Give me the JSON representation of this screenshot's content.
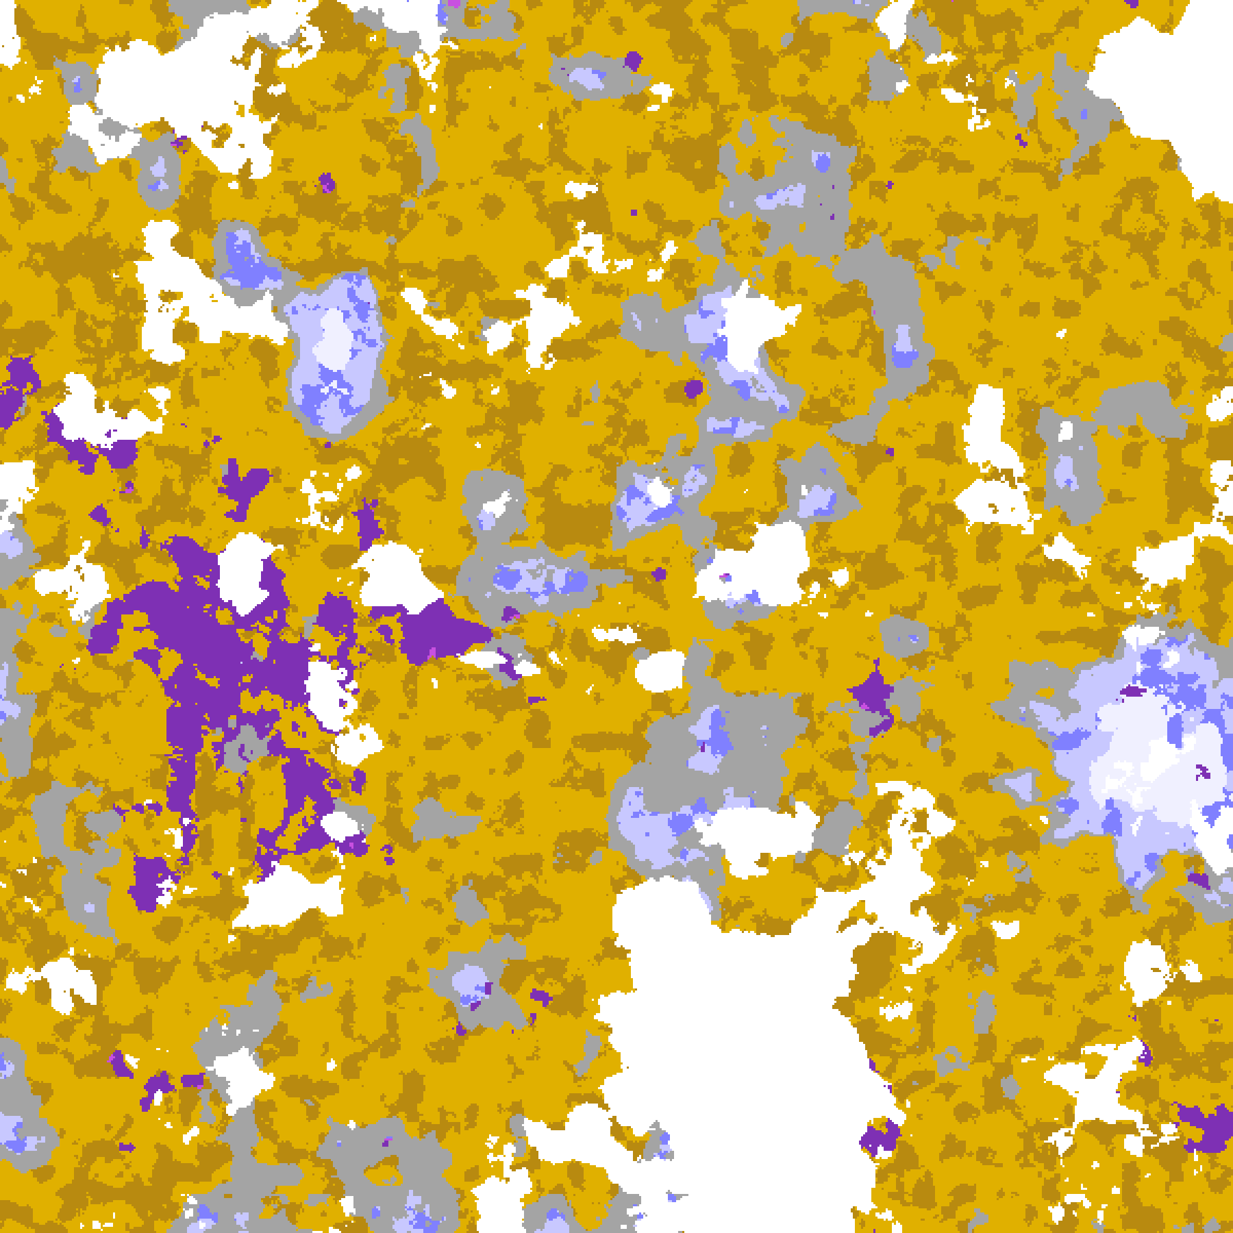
{
  "image": {
    "kind": "satellite cloud-type classification map",
    "palette": {
      "clear": "#ffffff",
      "gold": "#e0b000",
      "dark_gold": "#b88a10",
      "gray": "#a4a4a4",
      "blue": "#8080ff",
      "lavender": "#c8c8ff",
      "pale_lavender": "#f0f0ff",
      "purple": "#7e30b4",
      "magenta": "#c850e0"
    }
  }
}
